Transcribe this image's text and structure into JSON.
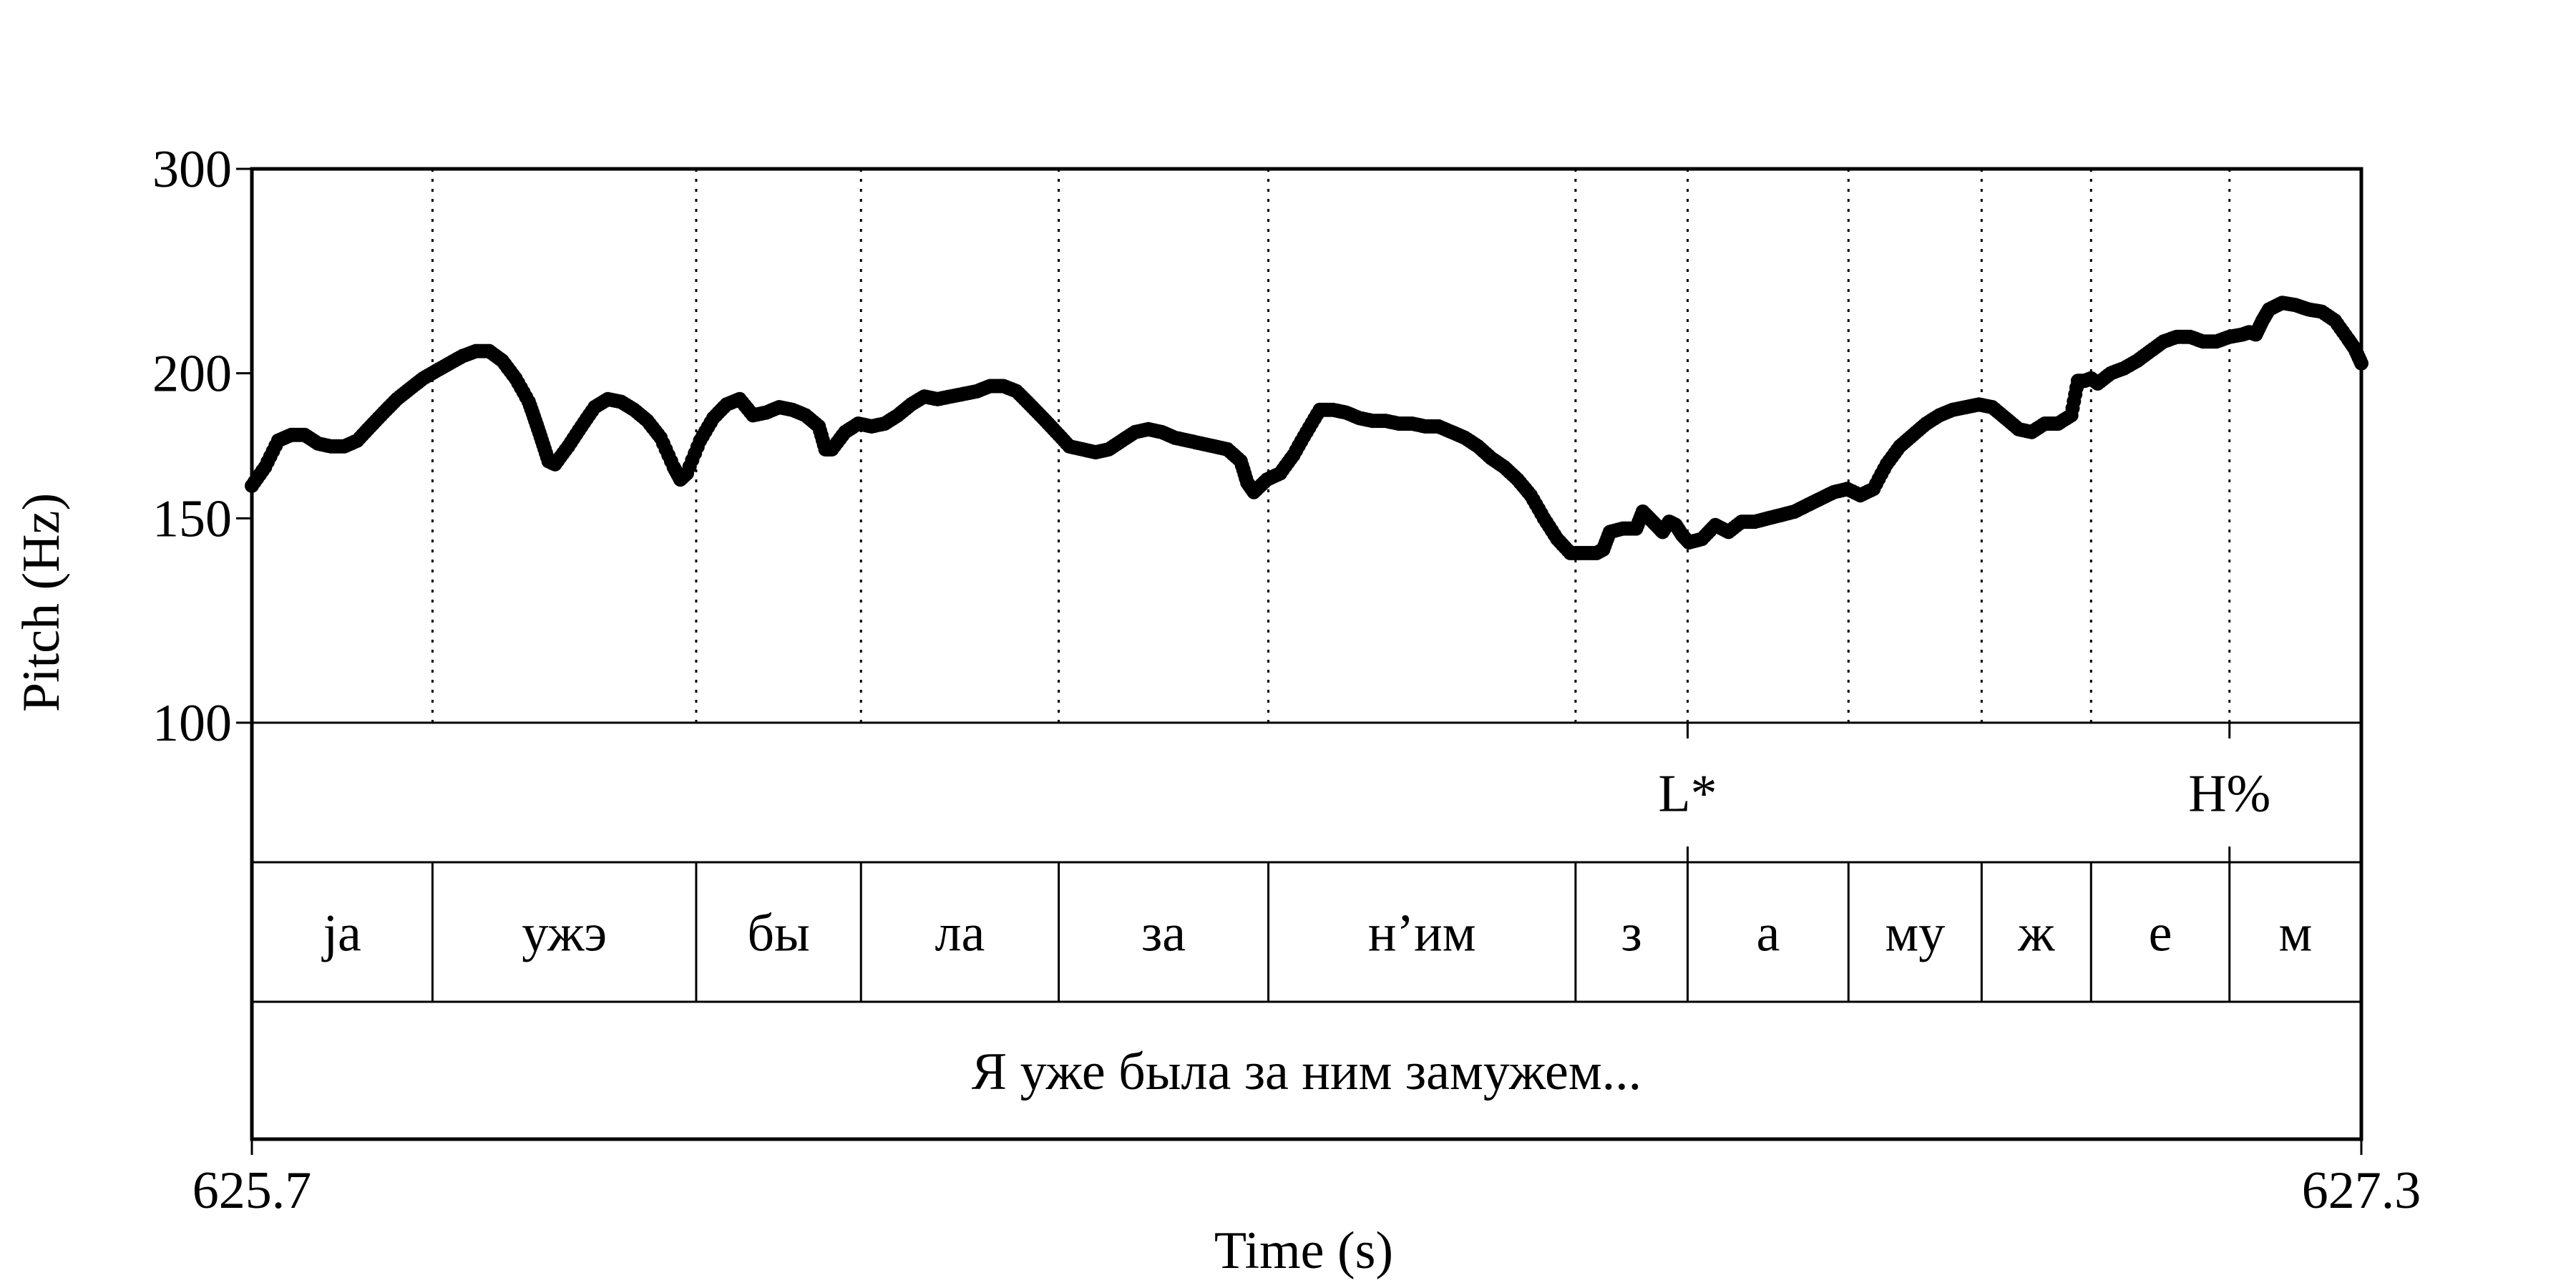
{
  "chart_data": {
    "type": "scatter",
    "title": "",
    "xlabel": "Time (s)",
    "ylabel": "Pitch (Hz)",
    "xlim": [
      625.7,
      627.3
    ],
    "ylim": [
      100,
      300
    ],
    "y_scale": "log",
    "x_tick_labels": [
      "625.7",
      "627.3"
    ],
    "y_ticks": [
      100,
      150,
      200,
      300
    ],
    "y_tick_labels": [
      "100",
      "150",
      "200",
      "300"
    ],
    "grid": false,
    "boundaries": [
      625.837,
      626.037,
      626.162,
      626.312,
      626.471,
      626.704,
      626.789,
      626.911,
      627.012,
      627.095,
      627.2
    ],
    "tone_tier": [
      {
        "time": 626.789,
        "label": "L*"
      },
      {
        "time": 627.2,
        "label": "H%"
      }
    ],
    "segment_tier": [
      {
        "start": 625.7,
        "end": 625.837,
        "label": "ja"
      },
      {
        "start": 625.837,
        "end": 626.037,
        "label": "ужэ"
      },
      {
        "start": 626.037,
        "end": 626.162,
        "label": "бы"
      },
      {
        "start": 626.162,
        "end": 626.312,
        "label": "ла"
      },
      {
        "start": 626.312,
        "end": 626.471,
        "label": "за"
      },
      {
        "start": 626.471,
        "end": 626.704,
        "label": "н’им"
      },
      {
        "start": 626.704,
        "end": 626.789,
        "label": "з"
      },
      {
        "start": 626.789,
        "end": 626.911,
        "label": "а"
      },
      {
        "start": 626.911,
        "end": 627.012,
        "label": "му"
      },
      {
        "start": 627.012,
        "end": 627.095,
        "label": "ж"
      },
      {
        "start": 627.095,
        "end": 627.2,
        "label": "е"
      },
      {
        "start": 627.2,
        "end": 627.3,
        "label": "м"
      }
    ],
    "sentence_tier": [
      {
        "start": 625.7,
        "end": 627.3,
        "label": "Я уже была за ним замужем..."
      }
    ],
    "series": [
      {
        "points": [
          [
            625.7,
            160
          ],
          [
            625.71,
            166
          ],
          [
            625.72,
            175
          ],
          [
            625.73,
            177
          ],
          [
            625.74,
            177
          ],
          [
            625.75,
            174
          ],
          [
            625.76,
            173
          ],
          [
            625.77,
            173
          ],
          [
            625.78,
            175
          ],
          [
            625.79,
            180
          ],
          [
            625.8,
            185
          ],
          [
            625.81,
            190
          ],
          [
            625.82,
            194
          ],
          [
            625.83,
            198
          ],
          [
            625.84,
            201
          ],
          [
            625.85,
            204
          ],
          [
            625.86,
            207
          ],
          [
            625.87,
            209
          ],
          [
            625.88,
            209
          ],
          [
            625.89,
            205
          ],
          [
            625.9,
            198
          ],
          [
            625.91,
            189
          ],
          [
            625.915,
            182
          ],
          [
            625.92,
            175
          ],
          [
            625.925,
            168
          ],
          [
            625.93,
            167
          ],
          [
            625.94,
            173
          ],
          [
            625.95,
            180
          ],
          [
            625.96,
            187
          ],
          [
            625.97,
            190
          ],
          [
            625.98,
            189
          ],
          [
            625.99,
            186
          ],
          [
            626.0,
            182
          ],
          [
            626.01,
            176
          ],
          [
            626.02,
            166
          ],
          [
            626.025,
            162
          ],
          [
            626.03,
            164
          ],
          [
            626.04,
            175
          ],
          [
            626.05,
            183
          ],
          [
            626.06,
            188
          ],
          [
            626.07,
            190
          ],
          [
            626.08,
            184
          ],
          [
            626.09,
            185
          ],
          [
            626.1,
            187
          ],
          [
            626.11,
            186
          ],
          [
            626.12,
            184
          ],
          [
            626.13,
            180
          ],
          [
            626.135,
            172
          ],
          [
            626.14,
            172
          ],
          [
            626.15,
            178
          ],
          [
            626.16,
            181
          ],
          [
            626.17,
            180
          ],
          [
            626.18,
            181
          ],
          [
            626.19,
            184
          ],
          [
            626.2,
            188
          ],
          [
            626.21,
            191
          ],
          [
            626.22,
            190
          ],
          [
            626.23,
            191
          ],
          [
            626.24,
            192
          ],
          [
            626.25,
            193
          ],
          [
            626.26,
            195
          ],
          [
            626.27,
            195
          ],
          [
            626.28,
            193
          ],
          [
            626.29,
            188
          ],
          [
            626.3,
            183
          ],
          [
            626.31,
            178
          ],
          [
            626.32,
            173
          ],
          [
            626.33,
            172
          ],
          [
            626.34,
            171
          ],
          [
            626.35,
            172
          ],
          [
            626.36,
            175
          ],
          [
            626.37,
            178
          ],
          [
            626.38,
            179
          ],
          [
            626.39,
            178
          ],
          [
            626.4,
            176
          ],
          [
            626.41,
            175
          ],
          [
            626.42,
            174
          ],
          [
            626.43,
            173
          ],
          [
            626.44,
            172
          ],
          [
            626.45,
            168
          ],
          [
            626.455,
            161
          ],
          [
            626.46,
            158
          ],
          [
            626.47,
            162
          ],
          [
            626.48,
            164
          ],
          [
            626.49,
            170
          ],
          [
            626.5,
            178
          ],
          [
            626.51,
            186
          ],
          [
            626.52,
            186
          ],
          [
            626.53,
            185
          ],
          [
            626.54,
            183
          ],
          [
            626.55,
            182
          ],
          [
            626.56,
            182
          ],
          [
            626.57,
            181
          ],
          [
            626.58,
            181
          ],
          [
            626.59,
            180
          ],
          [
            626.6,
            180
          ],
          [
            626.61,
            178
          ],
          [
            626.62,
            176
          ],
          [
            626.63,
            173
          ],
          [
            626.64,
            169
          ],
          [
            626.65,
            166
          ],
          [
            626.66,
            162
          ],
          [
            626.67,
            157
          ],
          [
            626.68,
            150
          ],
          [
            626.69,
            144
          ],
          [
            626.7,
            140
          ],
          [
            626.71,
            140
          ],
          [
            626.72,
            140
          ],
          [
            626.725,
            141
          ],
          [
            626.73,
            146
          ],
          [
            626.74,
            147
          ],
          [
            626.75,
            147
          ],
          [
            626.755,
            152
          ],
          [
            626.76,
            150
          ],
          [
            626.765,
            148
          ],
          [
            626.77,
            146
          ],
          [
            626.775,
            149
          ],
          [
            626.78,
            148
          ],
          [
            626.785,
            145
          ],
          [
            626.79,
            143
          ],
          [
            626.8,
            144
          ],
          [
            626.81,
            148
          ],
          [
            626.82,
            146
          ],
          [
            626.83,
            149
          ],
          [
            626.84,
            149
          ],
          [
            626.85,
            150
          ],
          [
            626.86,
            151
          ],
          [
            626.87,
            152
          ],
          [
            626.88,
            154
          ],
          [
            626.89,
            156
          ],
          [
            626.9,
            158
          ],
          [
            626.91,
            159
          ],
          [
            626.92,
            157
          ],
          [
            626.93,
            159
          ],
          [
            626.94,
            167
          ],
          [
            626.95,
            173
          ],
          [
            626.96,
            177
          ],
          [
            626.97,
            181
          ],
          [
            626.98,
            184
          ],
          [
            626.99,
            186
          ],
          [
            627.0,
            187
          ],
          [
            627.01,
            188
          ],
          [
            627.02,
            187
          ],
          [
            627.03,
            183
          ],
          [
            627.04,
            179
          ],
          [
            627.05,
            178
          ],
          [
            627.06,
            181
          ],
          [
            627.07,
            181
          ],
          [
            627.08,
            184
          ],
          [
            627.085,
            197
          ],
          [
            627.09,
            197
          ],
          [
            627.095,
            198
          ],
          [
            627.1,
            196
          ],
          [
            627.11,
            200
          ],
          [
            627.12,
            202
          ],
          [
            627.13,
            205
          ],
          [
            627.14,
            209
          ],
          [
            627.15,
            213
          ],
          [
            627.16,
            215
          ],
          [
            627.17,
            215
          ],
          [
            627.18,
            213
          ],
          [
            627.19,
            213
          ],
          [
            627.2,
            215
          ],
          [
            627.21,
            216
          ],
          [
            627.215,
            217
          ],
          [
            627.22,
            216
          ],
          [
            627.225,
            222
          ],
          [
            627.23,
            227
          ],
          [
            627.24,
            230
          ],
          [
            627.25,
            229
          ],
          [
            627.26,
            227
          ],
          [
            627.27,
            226
          ],
          [
            627.28,
            222
          ],
          [
            627.29,
            214
          ],
          [
            627.295,
            210
          ],
          [
            627.3,
            204
          ]
        ]
      }
    ]
  }
}
